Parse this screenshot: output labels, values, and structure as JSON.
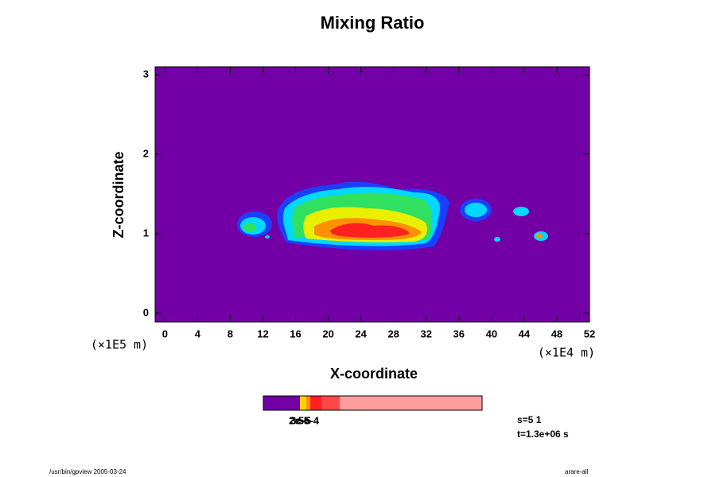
{
  "chart_data": {
    "type": "contour",
    "title": "Mixing Ratio",
    "xlabel": "X-coordinate",
    "ylabel": "Z-coordinate",
    "xunit": "(×1E4 m)",
    "yunit": "(×1E5 m)",
    "xlim": [
      -1.2,
      52
    ],
    "ylim": [
      -0.11,
      3.1
    ],
    "xticks": [
      0,
      4,
      8,
      12,
      16,
      20,
      24,
      28,
      32,
      36,
      40,
      44,
      48,
      52
    ],
    "yticks": [
      0,
      1,
      2,
      3
    ],
    "background_color": "#7300a6",
    "colorbar": {
      "colors": [
        "#7300a6",
        "#ffd000",
        "#ff9000",
        "#ff2020",
        "#ff4848",
        "#ff9c9c"
      ],
      "labels": [
        "2e-5",
        "3e-5",
        "5e-4"
      ]
    },
    "info": [
      "s=5 1",
      "t=1.3e+06 s"
    ],
    "footer_left": "/usr/bin/gpview 2005-03-24",
    "footer_right": "arare-all"
  }
}
